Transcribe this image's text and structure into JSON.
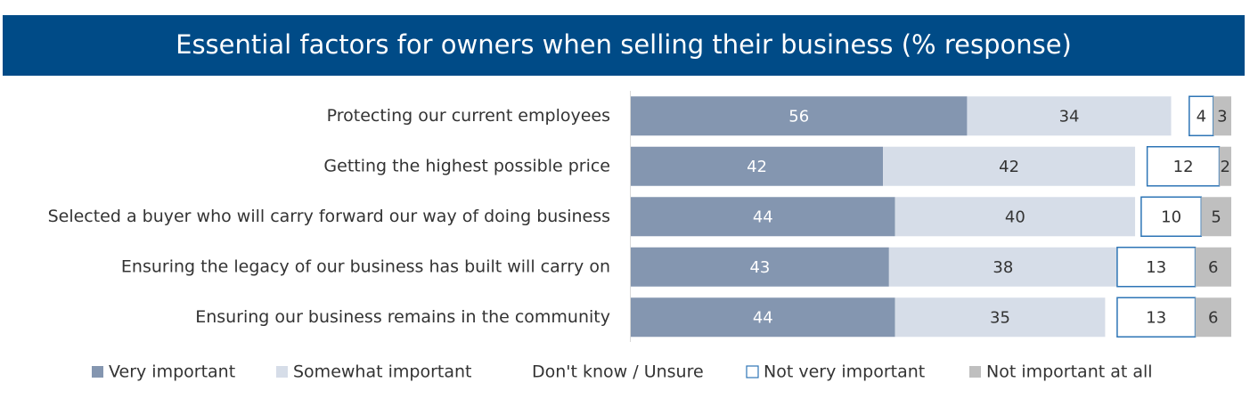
{
  "chart_data": {
    "type": "stacked_barh",
    "title": "Essential factors for owners when selling their business (% response)",
    "categories": [
      "Protecting our current employees",
      "Getting the highest possible price",
      "Selected a buyer who will carry forward our way of doing business",
      "Ensuring the legacy of our business has built will carry on",
      "Ensuring our business remains in the community"
    ],
    "xlim": [
      0,
      100
    ],
    "series": [
      {
        "name": "Very important",
        "color": "#8496b0",
        "label_color": "#ffffff",
        "values": [
          56,
          42,
          44,
          43,
          44
        ]
      },
      {
        "name": "Somewhat important",
        "color": "#d6dde8",
        "label_color": "#333333",
        "values": [
          34,
          42,
          40,
          38,
          35
        ]
      },
      {
        "name": "Don't know / Unsure",
        "color": "#ffffff",
        "label_color": "#333333",
        "data_labels": false,
        "values": [
          3,
          2,
          1,
          0,
          2
        ]
      },
      {
        "name": "Not very important",
        "color": "#ffffff",
        "edgecolor": "#2e75b6",
        "label_color": "#333333",
        "values": [
          4,
          12,
          10,
          13,
          13
        ]
      },
      {
        "name": "Not important at all",
        "color": "#bfbfbf",
        "label_color": "#333333",
        "values": [
          3,
          2,
          5,
          6,
          6
        ]
      }
    ]
  }
}
